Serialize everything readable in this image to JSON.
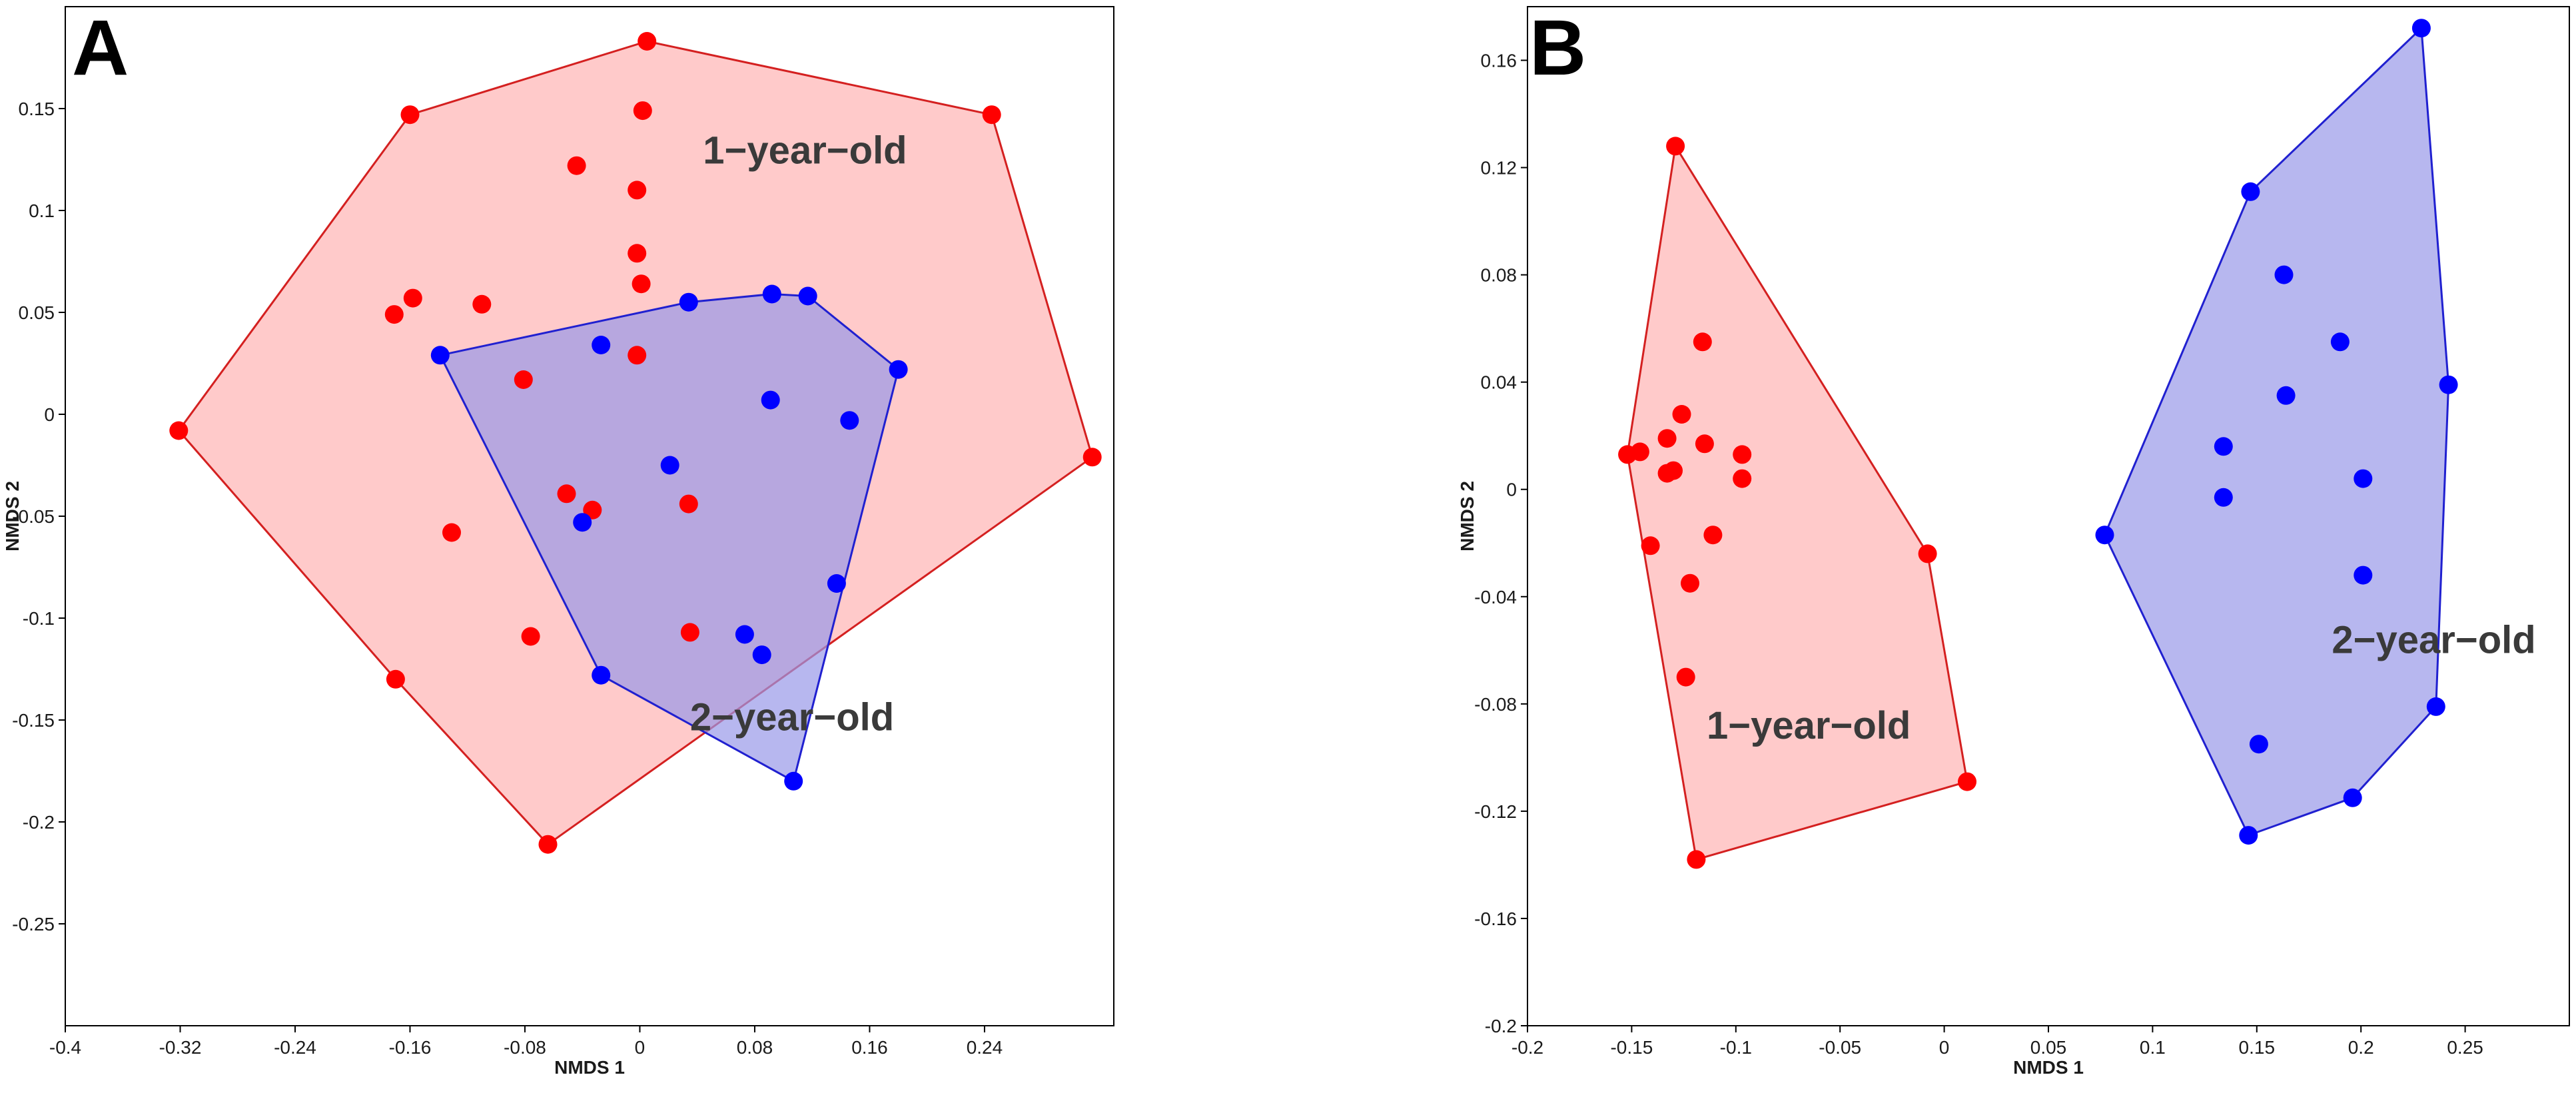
{
  "chart_data": [
    {
      "type": "scatter",
      "panel_label": "A",
      "xlabel": "NMDS 1",
      "ylabel": "NMDS 2",
      "xlim": [
        -0.4,
        0.33
      ],
      "ylim": [
        -0.3,
        0.2
      ],
      "xticks": [
        -0.4,
        -0.32,
        -0.24,
        -0.16,
        -0.08,
        0,
        0.08,
        0.16,
        0.24
      ],
      "xtick_labels": [
        "-0.4",
        "-0.32",
        "-0.24",
        "-0.16",
        "-0.08",
        "0",
        "0.08",
        "0.16",
        "0.24"
      ],
      "yticks": [
        0.15,
        0.1,
        0.05,
        0,
        -0.05,
        -0.1,
        -0.15,
        -0.2,
        -0.25
      ],
      "ytick_labels": [
        "0.15",
        "0.1",
        "0.05",
        "0",
        "-0.05",
        "-0.1",
        "-0.15",
        "-0.2",
        "-0.25"
      ],
      "series": [
        {
          "name": "1-year-old",
          "label": "1−year−old",
          "label_position": [
            0.044,
            0.123
          ],
          "color": "#ff0000",
          "fill_color": "#ffb3b3",
          "edge_color": "#d42020",
          "points": [
            [
              0.005,
              0.183
            ],
            [
              -0.16,
              0.147
            ],
            [
              0.245,
              0.147
            ],
            [
              0.002,
              0.149
            ],
            [
              -0.044,
              0.122
            ],
            [
              -0.002,
              0.11
            ],
            [
              -0.002,
              0.079
            ],
            [
              0.001,
              0.064
            ],
            [
              -0.158,
              0.057
            ],
            [
              -0.171,
              0.049
            ],
            [
              -0.11,
              0.054
            ],
            [
              -0.002,
              0.029
            ],
            [
              -0.081,
              0.017
            ],
            [
              -0.321,
              -0.008
            ],
            [
              0.315,
              -0.021
            ],
            [
              -0.051,
              -0.039
            ],
            [
              -0.033,
              -0.047
            ],
            [
              0.034,
              -0.044
            ],
            [
              -0.131,
              -0.058
            ],
            [
              -0.076,
              -0.109
            ],
            [
              0.035,
              -0.107
            ],
            [
              -0.17,
              -0.13
            ],
            [
              -0.064,
              -0.211
            ]
          ],
          "hull": [
            [
              0.005,
              0.183
            ],
            [
              0.245,
              0.147
            ],
            [
              0.315,
              -0.021
            ],
            [
              -0.064,
              -0.211
            ],
            [
              -0.17,
              -0.13
            ],
            [
              -0.321,
              -0.008
            ],
            [
              -0.16,
              0.147
            ]
          ]
        },
        {
          "name": "2-year-old",
          "label": "2−year−old",
          "label_position": [
            0.035,
            -0.155
          ],
          "color": "#0000ff",
          "fill_color": "#9898e8",
          "edge_color": "#2020d0",
          "points": [
            [
              0.092,
              0.059
            ],
            [
              0.117,
              0.058
            ],
            [
              0.034,
              0.055
            ],
            [
              -0.027,
              0.034
            ],
            [
              -0.139,
              0.029
            ],
            [
              0.18,
              0.022
            ],
            [
              0.091,
              0.007
            ],
            [
              0.146,
              -0.003
            ],
            [
              0.021,
              -0.025
            ],
            [
              -0.04,
              -0.053
            ],
            [
              0.137,
              -0.083
            ],
            [
              0.073,
              -0.108
            ],
            [
              0.085,
              -0.118
            ],
            [
              -0.027,
              -0.128
            ],
            [
              0.107,
              -0.18
            ]
          ],
          "hull": [
            [
              0.034,
              0.055
            ],
            [
              0.092,
              0.059
            ],
            [
              0.117,
              0.058
            ],
            [
              0.18,
              0.022
            ],
            [
              0.107,
              -0.18
            ],
            [
              -0.027,
              -0.128
            ],
            [
              -0.139,
              0.029
            ]
          ]
        }
      ]
    },
    {
      "type": "scatter",
      "panel_label": "B",
      "xlabel": "NMDS 1",
      "ylabel": "NMDS 2",
      "xlim": [
        -0.2,
        0.3
      ],
      "ylim": [
        -0.2,
        0.18
      ],
      "xticks": [
        -0.2,
        -0.15,
        -0.1,
        -0.05,
        0,
        0.05,
        0.1,
        0.15,
        0.2,
        0.25
      ],
      "xtick_labels": [
        "-0.2",
        "-0.15",
        "-0.1",
        "-0.05",
        "0",
        "0.05",
        "0.1",
        "0.15",
        "0.2",
        "0.25"
      ],
      "yticks": [
        0.16,
        0.12,
        0.08,
        0.04,
        0,
        -0.04,
        -0.08,
        -0.12,
        -0.16,
        -0.2
      ],
      "ytick_labels": [
        "0.16",
        "0.12",
        "0.08",
        "0.04",
        "0",
        "-0.04",
        "-0.08",
        "-0.12",
        "-0.16",
        "-0.2"
      ],
      "series": [
        {
          "name": "1-year-old",
          "label": "1−year−old",
          "label_position": [
            -0.114,
            -0.093
          ],
          "color": "#ff0000",
          "fill_color": "#ffb3b3",
          "edge_color": "#d42020",
          "points": [
            [
              -0.129,
              0.128
            ],
            [
              -0.116,
              0.055
            ],
            [
              -0.126,
              0.028
            ],
            [
              -0.133,
              0.019
            ],
            [
              -0.115,
              0.017
            ],
            [
              -0.097,
              0.013
            ],
            [
              -0.146,
              0.014
            ],
            [
              -0.152,
              0.013
            ],
            [
              -0.13,
              0.007
            ],
            [
              -0.133,
              0.006
            ],
            [
              -0.097,
              0.004
            ],
            [
              -0.111,
              -0.017
            ],
            [
              -0.141,
              -0.021
            ],
            [
              -0.008,
              -0.024
            ],
            [
              -0.122,
              -0.035
            ],
            [
              -0.124,
              -0.07
            ],
            [
              0.011,
              -0.109
            ],
            [
              -0.119,
              -0.138
            ]
          ],
          "hull": [
            [
              -0.129,
              0.128
            ],
            [
              -0.008,
              -0.024
            ],
            [
              0.011,
              -0.109
            ],
            [
              -0.119,
              -0.138
            ],
            [
              -0.152,
              0.013
            ]
          ]
        },
        {
          "name": "2-year-old",
          "label": "2−year−old",
          "label_position": [
            0.186,
            -0.061
          ],
          "color": "#0000ff",
          "fill_color": "#9898e8",
          "edge_color": "#2020d0",
          "points": [
            [
              0.229,
              0.172
            ],
            [
              0.147,
              0.111
            ],
            [
              0.163,
              0.08
            ],
            [
              0.19,
              0.055
            ],
            [
              0.242,
              0.039
            ],
            [
              0.164,
              0.035
            ],
            [
              0.134,
              0.016
            ],
            [
              0.201,
              0.004
            ],
            [
              0.134,
              -0.003
            ],
            [
              0.077,
              -0.017
            ],
            [
              0.201,
              -0.032
            ],
            [
              0.236,
              -0.081
            ],
            [
              0.151,
              -0.095
            ],
            [
              0.196,
              -0.115
            ],
            [
              0.146,
              -0.129
            ]
          ],
          "hull": [
            [
              0.229,
              0.172
            ],
            [
              0.242,
              0.039
            ],
            [
              0.236,
              -0.081
            ],
            [
              0.196,
              -0.115
            ],
            [
              0.146,
              -0.129
            ],
            [
              0.077,
              -0.017
            ],
            [
              0.147,
              0.111
            ]
          ]
        }
      ]
    }
  ]
}
